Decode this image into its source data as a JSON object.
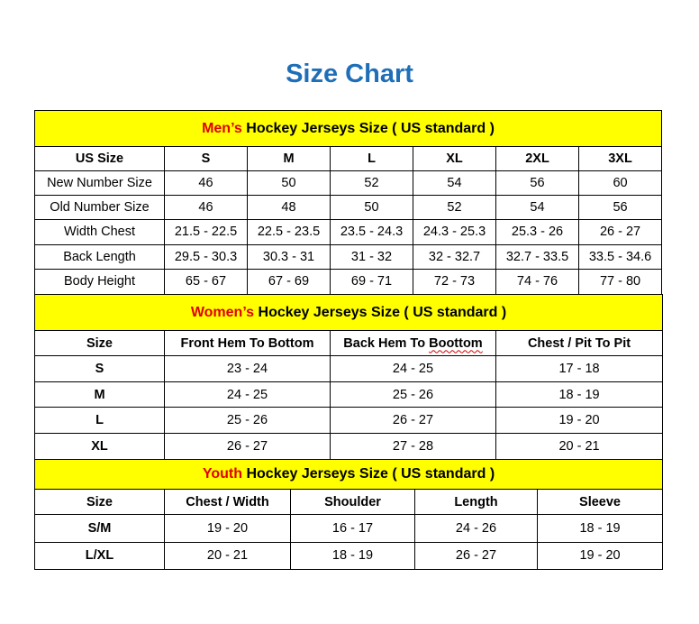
{
  "title": "Size Chart",
  "colors": {
    "title": "#1f6fb8",
    "section_bg": "#ffff00",
    "highlight": "#e00000"
  },
  "men": {
    "prefix": "Men’s",
    "suffix": " Hockey Jerseys Size ( US standard )",
    "headers": [
      "US Size",
      "S",
      "M",
      "L",
      "XL",
      "2XL",
      "3XL"
    ],
    "rows": [
      [
        "New Number Size",
        "46",
        "50",
        "52",
        "54",
        "56",
        "60"
      ],
      [
        "Old Number Size",
        "46",
        "48",
        "50",
        "52",
        "54",
        "56"
      ],
      [
        "Width Chest",
        "21.5 - 22.5",
        "22.5 - 23.5",
        "23.5 - 24.3",
        "24.3 - 25.3",
        "25.3 - 26",
        "26 - 27"
      ],
      [
        "Back Length",
        "29.5 - 30.3",
        "30.3 - 31",
        "31 - 32",
        "32 - 32.7",
        "32.7 - 33.5",
        "33.5 - 34.6"
      ],
      [
        "Body Height",
        "65 - 67",
        "67 - 69",
        "69 - 71",
        "72 - 73",
        "74 - 76",
        "77 - 80"
      ]
    ]
  },
  "women": {
    "prefix": "Women’s",
    "suffix": " Hockey Jerseys Size ( US standard )",
    "headers": [
      "Size",
      "Front Hem To Bottom",
      "Back Hem To ",
      "Chest / Pit To Pit"
    ],
    "headers_misspelled_word": "Boottom",
    "rows": [
      [
        "S",
        "23 - 24",
        "24 - 25",
        "17 - 18"
      ],
      [
        "M",
        "24 - 25",
        "25 - 26",
        "18 - 19"
      ],
      [
        "L",
        "25 - 26",
        "26 - 27",
        "19 - 20"
      ],
      [
        "XL",
        "26 - 27",
        "27 - 28",
        "20 - 21"
      ]
    ]
  },
  "youth": {
    "prefix": "Youth",
    "suffix": " Hockey Jerseys Size ( US standard )",
    "headers": [
      "Size",
      "Chest / Width",
      "Shoulder",
      "Length",
      "Sleeve"
    ],
    "rows": [
      [
        "S/M",
        "19 - 20",
        "16 - 17",
        "24 - 26",
        "18 - 19"
      ],
      [
        "L/XL",
        "20 - 21",
        "18 - 19",
        "26 - 27",
        "19 - 20"
      ]
    ]
  }
}
